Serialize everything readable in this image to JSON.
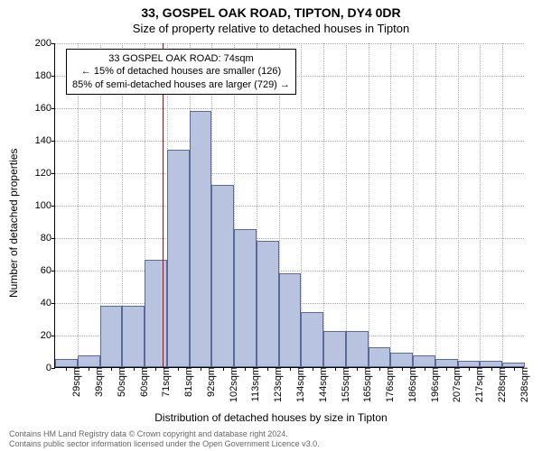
{
  "title": "33, GOSPEL OAK ROAD, TIPTON, DY4 0DR",
  "subtitle": "Size of property relative to detached houses in Tipton",
  "y_axis_label": "Number of detached properties",
  "x_axis_label": "Distribution of detached houses by size in Tipton",
  "chart": {
    "type": "histogram",
    "ylim": [
      0,
      200
    ],
    "ytick_step": 20,
    "bar_fill": "#b8c3e0",
    "bar_border": "#5a6a99",
    "grid_color": "#aaaaaa",
    "ref_line_color": "#cc0000",
    "ref_line_value": 74,
    "x_categories": [
      "29sqm",
      "39sqm",
      "50sqm",
      "60sqm",
      "71sqm",
      "81sqm",
      "92sqm",
      "102sqm",
      "113sqm",
      "123sqm",
      "134sqm",
      "144sqm",
      "155sqm",
      "165sqm",
      "176sqm",
      "186sqm",
      "196sqm",
      "207sqm",
      "217sqm",
      "228sqm",
      "238sqm"
    ],
    "values": [
      5,
      7,
      38,
      38,
      66,
      134,
      158,
      112,
      85,
      78,
      58,
      34,
      22,
      22,
      12,
      9,
      7,
      5,
      4,
      4,
      3
    ],
    "y_ticks": [
      0,
      20,
      40,
      60,
      80,
      100,
      120,
      140,
      160,
      180,
      200
    ],
    "annotation": {
      "line1": "33 GOSPEL OAK ROAD: 74sqm",
      "line2": "← 15% of detached houses are smaller (126)",
      "line3": "85% of semi-detached houses are larger (729) →"
    }
  },
  "footer": {
    "line1": "Contains HM Land Registry data © Crown copyright and database right 2024.",
    "line2": "Contains public sector information licensed under the Open Government Licence v3.0."
  }
}
